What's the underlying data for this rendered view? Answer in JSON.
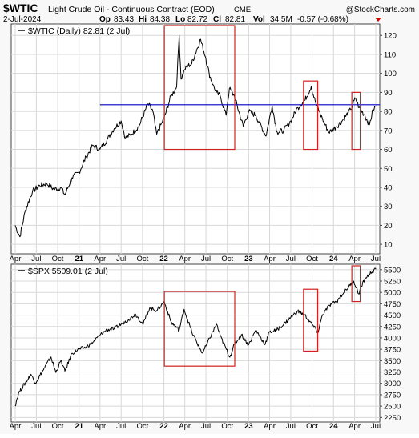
{
  "header": {
    "symbol": "$WTIC",
    "name": "Light Crude Oil - Continuous Contract (EOD)",
    "exchange": "CME",
    "date": "2-Jul-2024",
    "open_label": "Op",
    "open": "83.43",
    "high_label": "Hi",
    "high": "84.38",
    "low_label": "Lo",
    "low": "82.72",
    "close_label": "Cl",
    "close": "82.81",
    "volume_label": "Vol",
    "volume": "34.5M",
    "change": "-0.57 (-0.68%)",
    "watermark": "@StockCharts.com"
  },
  "colors": {
    "line": "#000000",
    "grid": "#d8d8d8",
    "panel_bg": "#ffffff",
    "page_bg": "#f8f8f8",
    "highlight_box": "#d02020",
    "level_line": "#0000c8",
    "down_marker": "#cc0000"
  },
  "chart_data": [
    {
      "type": "line",
      "legend": "$WTIC (Daily) 82.81 (2 Jul)",
      "y_ticks": [
        10,
        20,
        30,
        40,
        50,
        60,
        70,
        80,
        90,
        100,
        110,
        120
      ],
      "ylim": [
        5,
        126
      ],
      "x": [
        "2020-04-01",
        "2020-04-21",
        "2020-05-15",
        "2020-06-15",
        "2020-07-15",
        "2020-08-15",
        "2020-09-15",
        "2020-10-15",
        "2020-11-01",
        "2020-12-01",
        "2021-01-01",
        "2021-02-01",
        "2021-03-01",
        "2021-04-01",
        "2021-05-01",
        "2021-06-01",
        "2021-07-01",
        "2021-07-20",
        "2021-08-15",
        "2021-09-15",
        "2021-10-25",
        "2021-11-15",
        "2021-12-01",
        "2022-01-01",
        "2022-02-01",
        "2022-02-25",
        "2022-03-08",
        "2022-03-16",
        "2022-04-01",
        "2022-04-15",
        "2022-05-01",
        "2022-06-08",
        "2022-07-01",
        "2022-07-15",
        "2022-08-01",
        "2022-08-15",
        "2022-09-01",
        "2022-09-26",
        "2022-10-10",
        "2022-11-01",
        "2022-12-09",
        "2023-01-01",
        "2023-02-01",
        "2023-03-17",
        "2023-04-12",
        "2023-05-04",
        "2023-06-01",
        "2023-07-01",
        "2023-08-01",
        "2023-09-01",
        "2023-09-27",
        "2023-10-15",
        "2023-11-15",
        "2023-12-12",
        "2024-01-15",
        "2024-02-15",
        "2024-03-15",
        "2024-04-05",
        "2024-04-20",
        "2024-05-15",
        "2024-06-04",
        "2024-06-20",
        "2024-07-02"
      ],
      "y": [
        20,
        14,
        28,
        38,
        41,
        42,
        39,
        40,
        36,
        45,
        48,
        56,
        62,
        60,
        65,
        71,
        75,
        66,
        68,
        72,
        84,
        80,
        68,
        76,
        88,
        93,
        120,
        97,
        102,
        104,
        105,
        118,
        108,
        100,
        94,
        90,
        88,
        78,
        92,
        88,
        72,
        80,
        78,
        67,
        83,
        69,
        70,
        75,
        82,
        86,
        93,
        85,
        76,
        69,
        72,
        76,
        81,
        87,
        82,
        78,
        73,
        81,
        82.81
      ],
      "level_line": 83.5
    },
    {
      "type": "line",
      "legend": "$SPX 5509.01 (2 Jul)",
      "y_ticks": [
        2250,
        2500,
        2750,
        3000,
        3250,
        3500,
        3750,
        4000,
        4250,
        4500,
        4750,
        5000,
        5250,
        5500
      ],
      "ylim": [
        2150,
        5620
      ],
      "x": [
        "2020-04-01",
        "2020-04-15",
        "2020-06-08",
        "2020-06-26",
        "2020-08-01",
        "2020-09-02",
        "2020-09-23",
        "2020-10-15",
        "2020-11-01",
        "2020-12-01",
        "2021-01-01",
        "2021-02-01",
        "2021-03-01",
        "2021-04-01",
        "2021-05-01",
        "2021-06-01",
        "2021-07-01",
        "2021-08-01",
        "2021-09-01",
        "2021-10-04",
        "2021-11-01",
        "2021-12-01",
        "2022-01-03",
        "2022-02-01",
        "2022-03-08",
        "2022-03-29",
        "2022-05-01",
        "2022-06-16",
        "2022-07-01",
        "2022-08-16",
        "2022-09-01",
        "2022-10-12",
        "2022-11-01",
        "2022-12-01",
        "2023-01-01",
        "2023-02-01",
        "2023-03-13",
        "2023-04-01",
        "2023-05-01",
        "2023-06-01",
        "2023-07-01",
        "2023-07-31",
        "2023-09-01",
        "2023-10-27",
        "2023-11-15",
        "2023-12-15",
        "2024-01-15",
        "2024-02-15",
        "2024-03-28",
        "2024-04-19",
        "2024-05-15",
        "2024-06-15",
        "2024-07-02"
      ],
      "y": [
        2500,
        2780,
        3200,
        3010,
        3300,
        3580,
        3240,
        3500,
        3270,
        3660,
        3750,
        3800,
        3900,
        4060,
        4180,
        4200,
        4300,
        4400,
        4520,
        4300,
        4660,
        4600,
        4796,
        4350,
        4170,
        4630,
        4130,
        3666,
        3820,
        4300,
        4050,
        3577,
        3860,
        4070,
        3850,
        4170,
        3860,
        4130,
        4170,
        4300,
        4450,
        4589,
        4500,
        4117,
        4510,
        4720,
        4800,
        5000,
        5250,
        4967,
        5300,
        5450,
        5509.01
      ]
    }
  ],
  "x_axis_labels": [
    "Apr",
    "Jul",
    "Oct",
    "21",
    "Apr",
    "Jul",
    "Oct",
    "22",
    "Apr",
    "Jul",
    "Oct",
    "23",
    "Apr",
    "Jul",
    "Oct",
    "24",
    "Apr",
    "Jul"
  ],
  "x_axis_dates": [
    "2020-04-01",
    "2020-07-01",
    "2020-10-01",
    "2021-01-01",
    "2021-04-01",
    "2021-07-01",
    "2021-10-01",
    "2022-01-01",
    "2022-04-01",
    "2022-07-01",
    "2022-10-01",
    "2023-01-01",
    "2023-04-01",
    "2023-07-01",
    "2023-10-01",
    "2024-01-01",
    "2024-04-01",
    "2024-07-01"
  ],
  "highlight_periods": [
    {
      "start": "2022-01-03",
      "end": "2022-11-02",
      "wtic_range": [
        60,
        128
      ],
      "spx_range": [
        3380,
        5020
      ]
    },
    {
      "start": "2023-08-25",
      "end": "2023-10-25",
      "wtic_range": [
        60,
        96
      ],
      "spx_range": [
        3710,
        5070
      ]
    },
    {
      "start": "2024-03-20",
      "end": "2024-04-25",
      "wtic_range": [
        60,
        90
      ],
      "spx_range": [
        4800,
        5620
      ]
    }
  ]
}
